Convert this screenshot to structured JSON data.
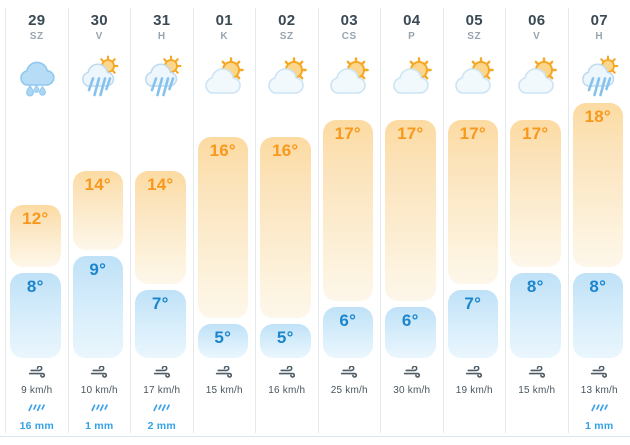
{
  "forecast": {
    "days": [
      {
        "date": "29",
        "dow": "SZ",
        "icon": "rain-cloud-icon",
        "hi": 12,
        "lo": 8,
        "wind": "9 km/h",
        "precip": "16 mm"
      },
      {
        "date": "30",
        "dow": "V",
        "icon": "sun-rain-cloud-icon",
        "hi": 14,
        "lo": 9,
        "wind": "10 km/h",
        "precip": "1 mm"
      },
      {
        "date": "31",
        "dow": "H",
        "icon": "sun-rain-cloud-icon",
        "hi": 14,
        "lo": 7,
        "wind": "17 km/h",
        "precip": "2 mm"
      },
      {
        "date": "01",
        "dow": "K",
        "icon": "sun-cloud-icon",
        "hi": 16,
        "lo": 5,
        "wind": "15 km/h",
        "precip": null
      },
      {
        "date": "02",
        "dow": "SZ",
        "icon": "sun-cloud-icon",
        "hi": 16,
        "lo": 5,
        "wind": "16 km/h",
        "precip": null
      },
      {
        "date": "03",
        "dow": "CS",
        "icon": "sun-cloud-icon",
        "hi": 17,
        "lo": 6,
        "wind": "25 km/h",
        "precip": null
      },
      {
        "date": "04",
        "dow": "P",
        "icon": "sun-cloud-icon",
        "hi": 17,
        "lo": 6,
        "wind": "30 km/h",
        "precip": null
      },
      {
        "date": "05",
        "dow": "SZ",
        "icon": "sun-cloud-icon",
        "hi": 17,
        "lo": 7,
        "wind": "19 km/h",
        "precip": null
      },
      {
        "date": "06",
        "dow": "V",
        "icon": "sun-cloud-icon",
        "hi": 17,
        "lo": 8,
        "wind": "15 km/h",
        "precip": null
      },
      {
        "date": "07",
        "dow": "H",
        "icon": "sun-rain-cloud-icon",
        "hi": 18,
        "lo": 8,
        "wind": "13 km/h",
        "precip": "1 mm"
      }
    ],
    "degree_symbol": "°"
  },
  "colors": {
    "high_temp_text": "#f8991d",
    "low_temp_text": "#1b86cd",
    "high_bar_top": "#fcdba2",
    "low_bar_top": "#bfe1f7",
    "date_text": "#3a4a55",
    "dow_text": "#97a5b0",
    "wind_text": "#47565f",
    "precip_text": "#34a2e6",
    "divider": "#e4e9ee"
  }
}
